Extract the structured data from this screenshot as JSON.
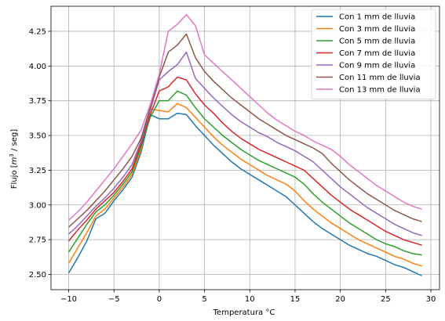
{
  "chart_data": {
    "type": "line",
    "xlabel": "Temperatura °C",
    "ylabel_prefix": "Flujo [",
    "ylabel_m": "m",
    "ylabel_exp": "3",
    "ylabel_suffix": " / seg]",
    "xlim": [
      -11.95,
      30.95
    ],
    "ylim": [
      2.39,
      4.43
    ],
    "grid": true,
    "legend_position": "top-right",
    "x_ticks": [
      -10,
      -5,
      0,
      5,
      10,
      15,
      20,
      25,
      30
    ],
    "x_tick_labels": [
      "−10",
      "−5",
      "0",
      "5",
      "10",
      "15",
      "20",
      "25",
      "30"
    ],
    "y_ticks": [
      2.5,
      2.75,
      3.0,
      3.25,
      3.5,
      3.75,
      4.0,
      4.25
    ],
    "y_tick_labels": [
      "2.50",
      "2.75",
      "3.00",
      "3.25",
      "3.50",
      "3.75",
      "4.00",
      "4.25"
    ],
    "x": [
      -10,
      -9,
      -8,
      -7,
      -6,
      -5,
      -4,
      -3,
      -2,
      -1,
      0,
      1,
      2,
      3,
      4,
      5,
      6,
      7,
      8,
      9,
      10,
      11,
      12,
      13,
      14,
      15,
      16,
      17,
      18,
      19,
      20,
      21,
      22,
      23,
      24,
      25,
      26,
      27,
      28,
      29
    ],
    "series": [
      {
        "name": "Con 1 mm de lluvia",
        "color": "#1f77b4",
        "values": [
          2.51,
          2.62,
          2.74,
          2.9,
          2.94,
          3.03,
          3.11,
          3.2,
          3.38,
          3.65,
          3.62,
          3.62,
          3.66,
          3.65,
          3.57,
          3.5,
          3.43,
          3.37,
          3.31,
          3.26,
          3.22,
          3.18,
          3.14,
          3.1,
          3.06,
          3.0,
          2.94,
          2.88,
          2.83,
          2.79,
          2.75,
          2.71,
          2.68,
          2.65,
          2.63,
          2.6,
          2.57,
          2.55,
          2.52,
          2.49
        ]
      },
      {
        "name": "Con 3 mm de lluvia",
        "color": "#ff7f0e",
        "values": [
          2.58,
          2.69,
          2.8,
          2.92,
          2.97,
          3.05,
          3.13,
          3.22,
          3.4,
          3.69,
          3.68,
          3.67,
          3.73,
          3.7,
          3.63,
          3.56,
          3.49,
          3.43,
          3.38,
          3.33,
          3.29,
          3.25,
          3.21,
          3.18,
          3.15,
          3.1,
          3.03,
          2.97,
          2.92,
          2.87,
          2.83,
          2.79,
          2.75,
          2.72,
          2.69,
          2.66,
          2.63,
          2.61,
          2.58,
          2.56
        ]
      },
      {
        "name": "Con 5 mm de lluvia",
        "color": "#2ca02c",
        "values": [
          2.66,
          2.76,
          2.86,
          2.95,
          3.0,
          3.07,
          3.15,
          3.24,
          3.42,
          3.63,
          3.75,
          3.75,
          3.82,
          3.79,
          3.7,
          3.62,
          3.56,
          3.5,
          3.45,
          3.4,
          3.36,
          3.32,
          3.29,
          3.26,
          3.23,
          3.2,
          3.15,
          3.08,
          3.02,
          2.97,
          2.92,
          2.87,
          2.83,
          2.79,
          2.75,
          2.72,
          2.7,
          2.67,
          2.65,
          2.64
        ]
      },
      {
        "name": "Con 7 mm de lluvia",
        "color": "#d62728",
        "values": [
          2.74,
          2.82,
          2.89,
          2.97,
          3.03,
          3.09,
          3.17,
          3.26,
          3.44,
          3.65,
          3.82,
          3.85,
          3.92,
          3.9,
          3.8,
          3.72,
          3.66,
          3.59,
          3.53,
          3.48,
          3.44,
          3.4,
          3.37,
          3.34,
          3.31,
          3.28,
          3.25,
          3.19,
          3.13,
          3.07,
          3.02,
          2.97,
          2.93,
          2.89,
          2.85,
          2.81,
          2.78,
          2.75,
          2.73,
          2.71
        ]
      },
      {
        "name": "Con 9 mm de lluvia",
        "color": "#9467bd",
        "values": [
          2.79,
          2.85,
          2.92,
          2.99,
          3.05,
          3.12,
          3.2,
          3.29,
          3.46,
          3.68,
          3.9,
          3.96,
          4.01,
          4.1,
          3.91,
          3.84,
          3.77,
          3.71,
          3.65,
          3.6,
          3.56,
          3.52,
          3.49,
          3.45,
          3.42,
          3.39,
          3.35,
          3.31,
          3.25,
          3.19,
          3.13,
          3.08,
          3.03,
          2.98,
          2.94,
          2.9,
          2.86,
          2.83,
          2.8,
          2.78
        ]
      },
      {
        "name": "Con 11 mm de lluvia",
        "color": "#8c564b",
        "values": [
          2.84,
          2.9,
          2.96,
          3.03,
          3.1,
          3.18,
          3.26,
          3.35,
          3.48,
          3.7,
          3.92,
          4.1,
          4.15,
          4.23,
          4.06,
          3.96,
          3.89,
          3.83,
          3.77,
          3.72,
          3.67,
          3.62,
          3.58,
          3.54,
          3.5,
          3.47,
          3.44,
          3.41,
          3.37,
          3.3,
          3.24,
          3.18,
          3.13,
          3.08,
          3.04,
          3.0,
          2.96,
          2.93,
          2.9,
          2.88
        ]
      },
      {
        "name": "Con 13 mm de lluvia",
        "color": "#e377c2",
        "values": [
          2.89,
          2.95,
          3.02,
          3.1,
          3.18,
          3.26,
          3.35,
          3.44,
          3.54,
          3.72,
          3.94,
          4.25,
          4.3,
          4.37,
          4.29,
          4.08,
          4.02,
          3.96,
          3.9,
          3.84,
          3.78,
          3.72,
          3.66,
          3.61,
          3.57,
          3.53,
          3.5,
          3.46,
          3.43,
          3.4,
          3.35,
          3.29,
          3.24,
          3.19,
          3.14,
          3.1,
          3.06,
          3.02,
          2.99,
          2.97
        ]
      }
    ]
  }
}
